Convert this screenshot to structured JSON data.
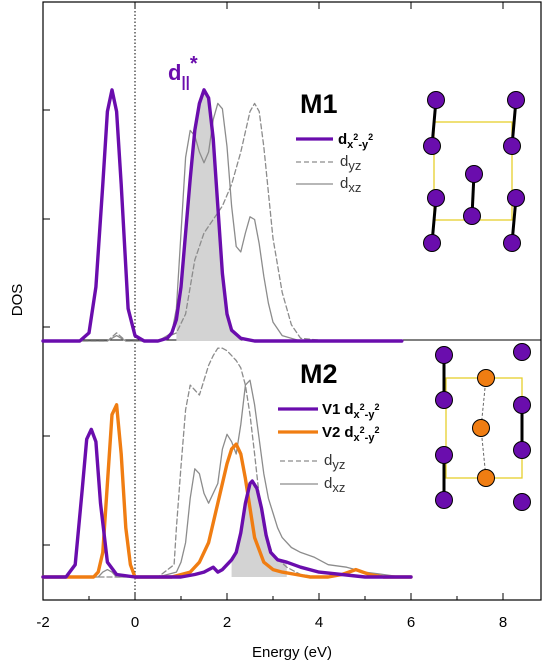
{
  "chart_data": [
    {
      "panel": "M1",
      "type": "line",
      "title": "M1",
      "annotation": "d||*",
      "xlabel": "Energy (eV)",
      "ylabel": "DOS",
      "xlim": [
        -2,
        8.5
      ],
      "ylim": [
        -0.05,
        1.05
      ],
      "grid": false,
      "legend_position": "right, below title",
      "series": [
        {
          "name": "dx2-y2",
          "color": "#6a0dad",
          "style": "solid-thick",
          "x": [
            -2,
            -1.2,
            -1.0,
            -0.85,
            -0.7,
            -0.6,
            -0.5,
            -0.4,
            -0.3,
            -0.15,
            0,
            0.2,
            0.5,
            0.7,
            0.8,
            0.9,
            1.0,
            1.1,
            1.2,
            1.3,
            1.4,
            1.5,
            1.6,
            1.7,
            1.8,
            1.9,
            2.0,
            2.1,
            2.3,
            2.6,
            3.0,
            3.6,
            5.8
          ],
          "y": [
            0.0,
            0.0,
            0.03,
            0.2,
            0.58,
            0.85,
            0.93,
            0.85,
            0.58,
            0.12,
            0.02,
            0.0,
            0.0,
            0.01,
            0.03,
            0.08,
            0.2,
            0.4,
            0.6,
            0.78,
            0.88,
            0.93,
            0.9,
            0.75,
            0.5,
            0.25,
            0.1,
            0.04,
            0.01,
            0.0,
            0.0,
            0.0,
            0.0
          ]
        },
        {
          "name": "dyz",
          "color": "#8c8c8c",
          "style": "dashed",
          "x": [
            -2,
            -0.6,
            -0.4,
            -0.2,
            0,
            0.5,
            0.9,
            1.1,
            1.3,
            1.5,
            1.7,
            1.9,
            2.1,
            2.3,
            2.5,
            2.6,
            2.7,
            2.8,
            2.9,
            3.0,
            3.2,
            3.4,
            3.6,
            4.2
          ],
          "y": [
            0.0,
            0.0,
            0.03,
            0.0,
            0.0,
            0.0,
            0.03,
            0.1,
            0.3,
            0.4,
            0.45,
            0.5,
            0.58,
            0.7,
            0.85,
            0.88,
            0.85,
            0.72,
            0.55,
            0.38,
            0.18,
            0.06,
            0.01,
            0.0
          ]
        },
        {
          "name": "dxz",
          "color": "#8c8c8c",
          "style": "solid-thin",
          "x": [
            -2,
            -0.6,
            -0.4,
            -0.2,
            0,
            0.5,
            0.8,
            0.9,
            1.0,
            1.1,
            1.2,
            1.3,
            1.4,
            1.5,
            1.6,
            1.7,
            1.8,
            1.9,
            2.0,
            2.1,
            2.2,
            2.3,
            2.4,
            2.5,
            2.6,
            2.7,
            2.8,
            2.9,
            3.0,
            3.2,
            3.6,
            4.0
          ],
          "y": [
            0.0,
            0.0,
            0.02,
            0.0,
            0.0,
            0.0,
            0.03,
            0.12,
            0.4,
            0.68,
            0.78,
            0.76,
            0.7,
            0.66,
            0.7,
            0.82,
            0.88,
            0.86,
            0.72,
            0.5,
            0.35,
            0.33,
            0.4,
            0.46,
            0.45,
            0.36,
            0.24,
            0.14,
            0.07,
            0.02,
            0.0,
            0.0
          ]
        }
      ]
    },
    {
      "panel": "M2",
      "type": "line",
      "title": "M2",
      "xlabel": "Energy (eV)",
      "ylabel": "DOS",
      "xlim": [
        -2,
        8.5
      ],
      "ylim": [
        -0.05,
        1.05
      ],
      "grid": false,
      "legend_position": "right, below title",
      "series": [
        {
          "name": "V1 dx2-y2",
          "color": "#6a0dad",
          "style": "solid-thick",
          "x": [
            -2,
            -1.5,
            -1.3,
            -1.15,
            -1.05,
            -0.95,
            -0.85,
            -0.75,
            -0.6,
            -0.4,
            0,
            0.5,
            1.0,
            1.3,
            1.5,
            1.7,
            1.8,
            1.9,
            2.0,
            2.1,
            2.2,
            2.3,
            2.4,
            2.5,
            2.55,
            2.65,
            2.75,
            2.85,
            2.95,
            3.1,
            3.3,
            3.6,
            4.0,
            5.0,
            6.0
          ],
          "y": [
            0.0,
            0.0,
            0.05,
            0.35,
            0.56,
            0.6,
            0.55,
            0.3,
            0.06,
            0.01,
            0.0,
            0.0,
            0.0,
            0.01,
            0.02,
            0.04,
            0.02,
            0.03,
            0.05,
            0.07,
            0.1,
            0.18,
            0.3,
            0.38,
            0.39,
            0.36,
            0.28,
            0.17,
            0.1,
            0.07,
            0.06,
            0.04,
            0.02,
            0.0,
            0.0
          ]
        },
        {
          "name": "V2 dx2-y2",
          "color": "#f07d12",
          "style": "solid-thick",
          "x": [
            -2,
            -0.9,
            -0.8,
            -0.7,
            -0.6,
            -0.5,
            -0.4,
            -0.3,
            -0.2,
            -0.1,
            0,
            0.3,
            0.8,
            1.2,
            1.4,
            1.6,
            1.8,
            2.0,
            2.1,
            2.2,
            2.3,
            2.4,
            2.5,
            2.6,
            2.8,
            3.0,
            3.2,
            3.5,
            3.8,
            4.2,
            4.5,
            4.8,
            5.1,
            5.4,
            6.0
          ],
          "y": [
            0.0,
            0.0,
            0.02,
            0.1,
            0.38,
            0.66,
            0.7,
            0.5,
            0.2,
            0.05,
            0.0,
            0.0,
            0.0,
            0.02,
            0.06,
            0.14,
            0.3,
            0.46,
            0.52,
            0.54,
            0.5,
            0.4,
            0.28,
            0.16,
            0.06,
            0.03,
            0.02,
            0.01,
            0.0,
            0.0,
            0.01,
            0.03,
            0.01,
            0.0,
            0.0
          ]
        },
        {
          "name": "dyz",
          "color": "#8c8c8c",
          "style": "dashed",
          "x": [
            -2,
            0.5,
            0.85,
            0.9,
            1.0,
            1.1,
            1.2,
            1.3,
            1.4,
            1.5,
            1.6,
            1.7,
            1.8,
            1.9,
            2.0,
            2.1,
            2.2,
            2.3,
            2.4,
            2.5,
            2.6,
            2.7,
            2.8,
            3.0,
            3.3,
            3.6,
            4.0
          ],
          "y": [
            0.0,
            0.0,
            0.05,
            0.2,
            0.45,
            0.68,
            0.78,
            0.76,
            0.74,
            0.8,
            0.86,
            0.9,
            0.93,
            0.93,
            0.92,
            0.9,
            0.88,
            0.85,
            0.78,
            0.66,
            0.5,
            0.33,
            0.2,
            0.09,
            0.04,
            0.01,
            0.0
          ]
        },
        {
          "name": "dxz",
          "color": "#8c8c8c",
          "style": "solid-thin",
          "x": [
            -2,
            -0.8,
            -0.7,
            -0.6,
            -0.5,
            -0.4,
            0,
            0.5,
            0.9,
            1.0,
            1.1,
            1.2,
            1.3,
            1.4,
            1.5,
            1.6,
            1.8,
            1.9,
            2.0,
            2.1,
            2.2,
            2.3,
            2.4,
            2.5,
            2.6,
            2.7,
            2.8,
            2.9,
            3.0,
            3.1,
            3.2,
            3.4,
            3.6,
            3.9,
            4.2,
            4.6,
            5.0,
            5.4,
            5.8
          ],
          "y": [
            0.0,
            0.0,
            0.02,
            0.03,
            0.02,
            0.0,
            0.0,
            0.0,
            0.02,
            0.06,
            0.14,
            0.32,
            0.44,
            0.42,
            0.34,
            0.3,
            0.38,
            0.52,
            0.58,
            0.55,
            0.5,
            0.62,
            0.78,
            0.8,
            0.7,
            0.56,
            0.42,
            0.32,
            0.26,
            0.2,
            0.16,
            0.12,
            0.1,
            0.08,
            0.05,
            0.04,
            0.02,
            0.01,
            0.0
          ]
        }
      ]
    }
  ],
  "axes": {
    "xlabel": "Energy (eV)",
    "ylabel": "DOS",
    "xticks": [
      "-2",
      "0",
      "2",
      "4",
      "6",
      "8"
    ],
    "fermi_line": "dotted vertical at 0"
  },
  "labels": {
    "m1_title": "M1",
    "m2_title": "M2",
    "d_par": "d",
    "d_par_sub": "||",
    "d_par_sup": "*",
    "leg_d_main": "d",
    "leg_x2_base": "x",
    "leg_sup2": "2",
    "leg_dash": "-y",
    "leg_yz": "yz",
    "leg_xz": "xz",
    "leg_v1": "V1",
    "leg_v2": "V2"
  },
  "colors": {
    "purple": "#6a0dad",
    "orange": "#f07d12",
    "gray": "#8c8c8c",
    "fill": "#d3d3d3",
    "cell": "#e6cf2c"
  }
}
